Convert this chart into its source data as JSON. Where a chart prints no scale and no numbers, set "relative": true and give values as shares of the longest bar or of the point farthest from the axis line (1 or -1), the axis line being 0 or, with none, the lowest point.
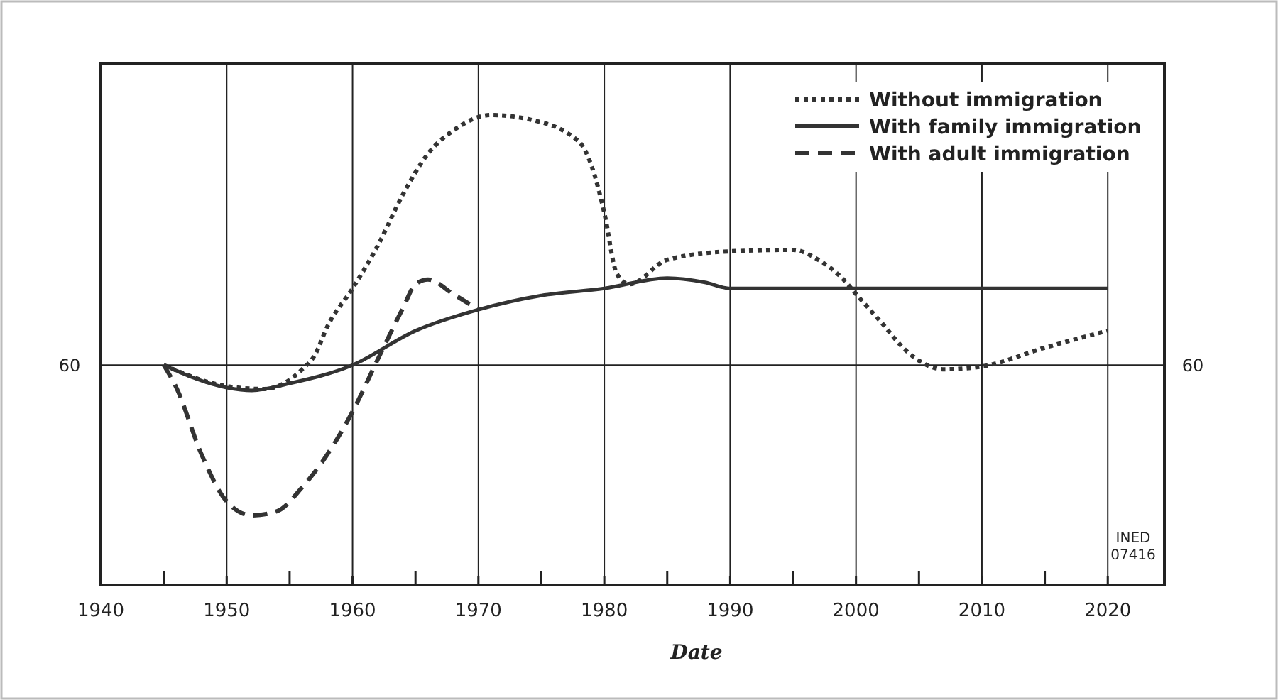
{
  "chart_data": {
    "type": "line",
    "relative": true,
    "xlabel": "Date",
    "xlim": [
      1940,
      2024.5
    ],
    "xticks": [
      1940,
      {
        "value": 1945,
        "label": null
      },
      1950,
      {
        "value": 1955,
        "label": null
      },
      1960,
      {
        "value": 1965,
        "label": null
      },
      1970,
      {
        "value": 1975,
        "label": null
      },
      1980,
      {
        "value": 1985,
        "label": null
      },
      1990,
      {
        "value": 1995,
        "label": null
      },
      2000,
      {
        "value": 2005,
        "label": null
      },
      2010,
      {
        "value": 2015,
        "label": null
      },
      2020
    ],
    "grid": "x",
    "legend": "top right",
    "marker": "none",
    "ref_lines": [
      {
        "axis": "y",
        "value": 0.468
      }
    ],
    "annotations": [
      "60",
      "INED 07416"
    ],
    "series": [
      {
        "name": "Without immigration",
        "color": "#333333",
        "line_style": "dotted",
        "x": [
          1945,
          1950,
          1953,
          1956,
          1957,
          1958,
          1960,
          1962,
          1964,
          1966,
          1968,
          1971,
          1974,
          1978,
          1979,
          1980,
          1981,
          1982,
          1985,
          1990,
          1995,
          1997,
          1999,
          2000,
          2002,
          2004,
          2007,
          2010,
          2015,
          2020
        ],
        "values": [
          0.468,
          0.423,
          0.417,
          0.459,
          0.489,
          0.55,
          0.631,
          0.722,
          0.831,
          0.918,
          0.967,
          1,
          0.991,
          0.943,
          0.891,
          0.792,
          0.662,
          0.64,
          0.692,
          0.71,
          0.713,
          0.692,
          0.65,
          0.619,
          0.559,
          0.498,
          0.459,
          0.465,
          0.505,
          0.541
        ]
      },
      {
        "name": "With family immigration",
        "color": "#333333",
        "line_style": "solid",
        "x": [
          1945,
          1950,
          1952,
          1955,
          1960,
          1965,
          1970,
          1975,
          1980,
          1985,
          1988,
          1990,
          2000,
          2010,
          2020
        ],
        "values": [
          0.468,
          0.42,
          0.414,
          0.429,
          0.468,
          0.541,
          0.586,
          0.616,
          0.631,
          0.653,
          0.644,
          0.631,
          0.631,
          0.631,
          0.631
        ]
      },
      {
        "name": "With adult immigration",
        "color": "#333333",
        "line_style": "dashed",
        "x": [
          1945,
          1946,
          1948,
          1950,
          1952,
          1954,
          1956,
          1958,
          1960,
          1962,
          1964,
          1965,
          1966,
          1968,
          1970
        ],
        "values": [
          0.468,
          0.42,
          0.278,
          0.178,
          0.148,
          0.157,
          0.208,
          0.278,
          0.369,
          0.48,
          0.589,
          0.64,
          0.65,
          0.619,
          0.586
        ]
      }
    ]
  }
}
